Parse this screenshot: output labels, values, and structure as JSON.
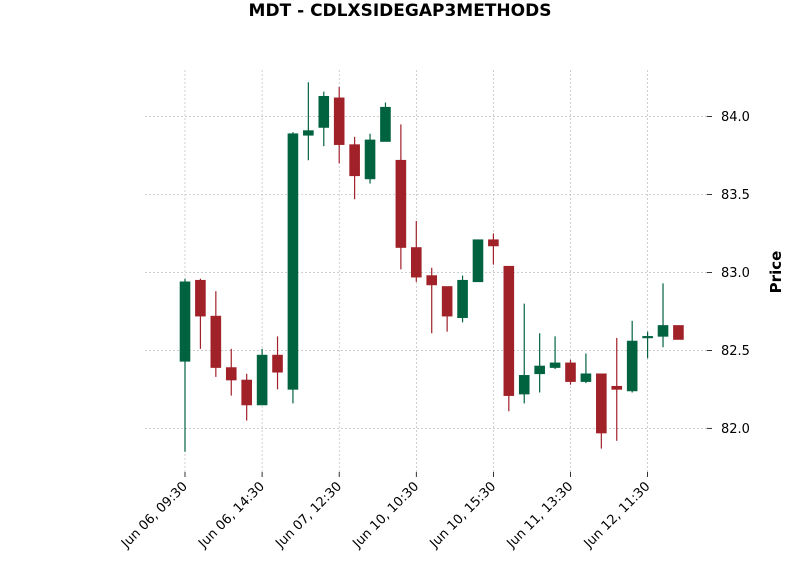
{
  "chart_data": {
    "type": "candlestick",
    "title": "MDT - CDLXSIDEGAP3METHODS",
    "ylabel": "Price",
    "xlabel": "",
    "ylim": [
      81.72,
      84.35
    ],
    "grid": true,
    "y_ticks": [
      82.0,
      82.5,
      83.0,
      83.5,
      84.0
    ],
    "y_tick_labels": [
      "82.0",
      "82.5",
      "83.0",
      "83.5",
      "84.0"
    ],
    "x_ticks": [
      {
        "index": 0,
        "label": "Jun 06, 09:30"
      },
      {
        "index": 5,
        "label": "Jun 06, 14:30"
      },
      {
        "index": 10,
        "label": "Jun 07, 12:30"
      },
      {
        "index": 15,
        "label": "Jun 10, 10:30"
      },
      {
        "index": 20,
        "label": "Jun 10, 15:30"
      },
      {
        "index": 25,
        "label": "Jun 11, 13:30"
      },
      {
        "index": 30,
        "label": "Jun 12, 11:30"
      }
    ],
    "colors": {
      "up": "#006340",
      "down": "#a02128"
    },
    "candles": [
      {
        "open": 82.43,
        "high": 82.96,
        "low": 81.85,
        "close": 82.94
      },
      {
        "open": 82.95,
        "high": 82.96,
        "low": 82.51,
        "close": 82.72
      },
      {
        "open": 82.72,
        "high": 82.88,
        "low": 82.33,
        "close": 82.39
      },
      {
        "open": 82.39,
        "high": 82.51,
        "low": 82.21,
        "close": 82.31
      },
      {
        "open": 82.31,
        "high": 82.35,
        "low": 82.05,
        "close": 82.15
      },
      {
        "open": 82.15,
        "high": 82.51,
        "low": 82.15,
        "close": 82.47
      },
      {
        "open": 82.47,
        "high": 82.59,
        "low": 82.25,
        "close": 82.36
      },
      {
        "open": 82.25,
        "high": 83.9,
        "low": 82.16,
        "close": 83.89
      },
      {
        "open": 83.88,
        "high": 84.22,
        "low": 83.72,
        "close": 83.91
      },
      {
        "open": 83.93,
        "high": 84.16,
        "low": 83.81,
        "close": 84.13
      },
      {
        "open": 84.12,
        "high": 84.19,
        "low": 83.7,
        "close": 83.82
      },
      {
        "open": 83.82,
        "high": 83.87,
        "low": 83.47,
        "close": 83.62
      },
      {
        "open": 83.6,
        "high": 83.89,
        "low": 83.57,
        "close": 83.85
      },
      {
        "open": 83.84,
        "high": 84.09,
        "low": 83.84,
        "close": 84.06
      },
      {
        "open": 83.72,
        "high": 83.95,
        "low": 83.02,
        "close": 83.16
      },
      {
        "open": 83.16,
        "high": 83.33,
        "low": 82.94,
        "close": 82.97
      },
      {
        "open": 82.98,
        "high": 83.03,
        "low": 82.61,
        "close": 82.92
      },
      {
        "open": 82.91,
        "high": 82.91,
        "low": 82.62,
        "close": 82.72
      },
      {
        "open": 82.71,
        "high": 82.98,
        "low": 82.68,
        "close": 82.95
      },
      {
        "open": 82.94,
        "high": 83.21,
        "low": 82.94,
        "close": 83.21
      },
      {
        "open": 83.21,
        "high": 83.25,
        "low": 83.05,
        "close": 83.17
      },
      {
        "open": 83.04,
        "high": 83.04,
        "low": 82.11,
        "close": 82.21
      },
      {
        "open": 82.22,
        "high": 82.8,
        "low": 82.16,
        "close": 82.34
      },
      {
        "open": 82.35,
        "high": 82.61,
        "low": 82.23,
        "close": 82.4
      },
      {
        "open": 82.39,
        "high": 82.59,
        "low": 82.38,
        "close": 82.42
      },
      {
        "open": 82.42,
        "high": 82.44,
        "low": 82.28,
        "close": 82.3
      },
      {
        "open": 82.3,
        "high": 82.48,
        "low": 82.29,
        "close": 82.35
      },
      {
        "open": 82.35,
        "high": 82.35,
        "low": 81.87,
        "close": 81.97
      },
      {
        "open": 82.27,
        "high": 82.58,
        "low": 81.92,
        "close": 82.25
      },
      {
        "open": 82.24,
        "high": 82.69,
        "low": 82.23,
        "close": 82.56
      },
      {
        "open": 82.58,
        "high": 82.62,
        "low": 82.45,
        "close": 82.59
      },
      {
        "open": 82.59,
        "high": 82.93,
        "low": 82.52,
        "close": 82.66
      },
      {
        "open": 82.66,
        "high": 82.66,
        "low": 82.57,
        "close": 82.57
      }
    ]
  }
}
